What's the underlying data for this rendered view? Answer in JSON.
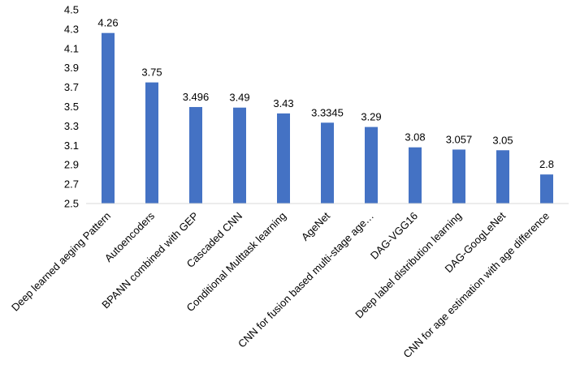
{
  "chart_data": {
    "type": "bar",
    "title": "",
    "xlabel": "",
    "ylabel": "",
    "ylim": [
      2.5,
      4.5
    ],
    "yticks": [
      "2.5",
      "2.7",
      "2.9",
      "3.1",
      "3.3",
      "3.5",
      "3.7",
      "3.9",
      "4.1",
      "4.3",
      "4.5"
    ],
    "grid": false,
    "legend": "none",
    "bar_color": "#4472C4",
    "categories": [
      "Deep learned aeging Pattern",
      "Autoencoders",
      "BPANN combined with GEP",
      "Cascaded CNN",
      "Conditional Multtask learning",
      "AgeNet",
      "CNN for fusion based multi-stage age…",
      "DAG-VGG16",
      "Deep label distribution learning",
      "DAG-GoogLeNet",
      "CNN for age estimation with age difference"
    ],
    "values": [
      4.26,
      3.75,
      3.496,
      3.49,
      3.43,
      3.3345,
      3.29,
      3.08,
      3.057,
      3.05,
      2.8
    ],
    "value_labels": [
      "4.26",
      "3.75",
      "3.496",
      "3.49",
      "3.43",
      "3.3345",
      "3.29",
      "3.08",
      "3.057",
      "3.05",
      "2.8"
    ]
  }
}
